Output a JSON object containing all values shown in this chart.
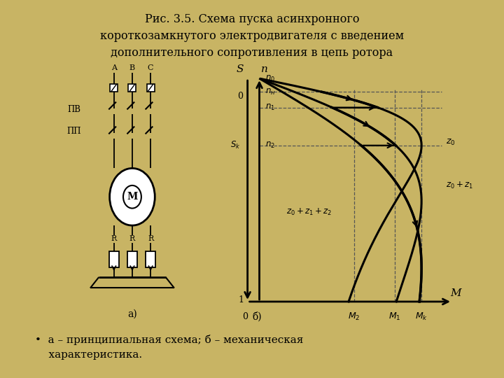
{
  "title_line1": "Рис. 3.5. Схема пуска асинхронного",
  "title_line2": "короткозамкнутого электродвигателя с введением",
  "title_line3": "дополнительного сопротивления в цепь ротора",
  "caption_bullet": "•  а – принципиальная схема; б – механическая",
  "caption_line2": "    характеристика.",
  "bg_color": "#c8b464",
  "panel_bg": "#ffffff",
  "text_color": "#000000",
  "title_fontsize": 11.5,
  "caption_fontsize": 11
}
